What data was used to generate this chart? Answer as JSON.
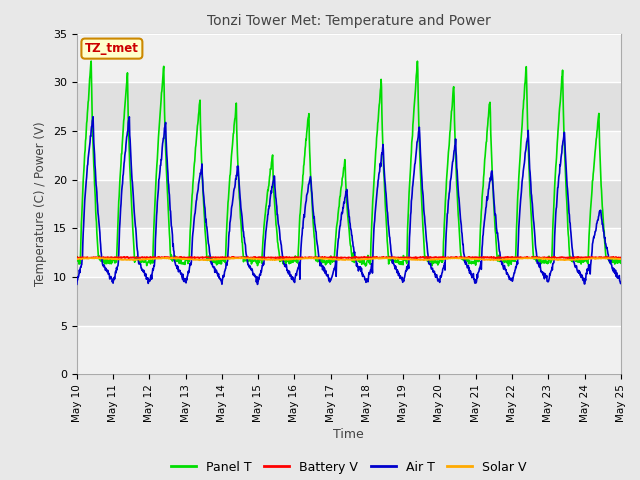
{
  "title": "Tonzi Tower Met: Temperature and Power",
  "xlabel": "Time",
  "ylabel": "Temperature (C) / Power (V)",
  "ylim": [
    0,
    35
  ],
  "yticks": [
    0,
    5,
    10,
    15,
    20,
    25,
    30,
    35
  ],
  "xtick_labels": [
    "May 10",
    "May 11",
    "May 12",
    "May 13",
    "May 14",
    "May 15",
    "May 16",
    "May 17",
    "May 18",
    "May 19",
    "May 20",
    "May 21",
    "May 22",
    "May 23",
    "May 24",
    "May 25"
  ],
  "annotation_text": "TZ_tmet",
  "annotation_bg": "#ffffcc",
  "annotation_border": "#cc8800",
  "annotation_text_color": "#cc0000",
  "fig_bg": "#e8e8e8",
  "plot_bg": "#e8e8e8",
  "grid_color": "#ffffff",
  "legend_items": [
    "Panel T",
    "Battery V",
    "Air T",
    "Solar V"
  ],
  "legend_colors": [
    "#00dd00",
    "#ff0000",
    "#0000cc",
    "#ffaa00"
  ],
  "panel_t_color": "#00dd00",
  "battery_v_color": "#ff0000",
  "air_t_color": "#0000cc",
  "solar_v_color": "#ffaa00",
  "line_width": 1.2
}
